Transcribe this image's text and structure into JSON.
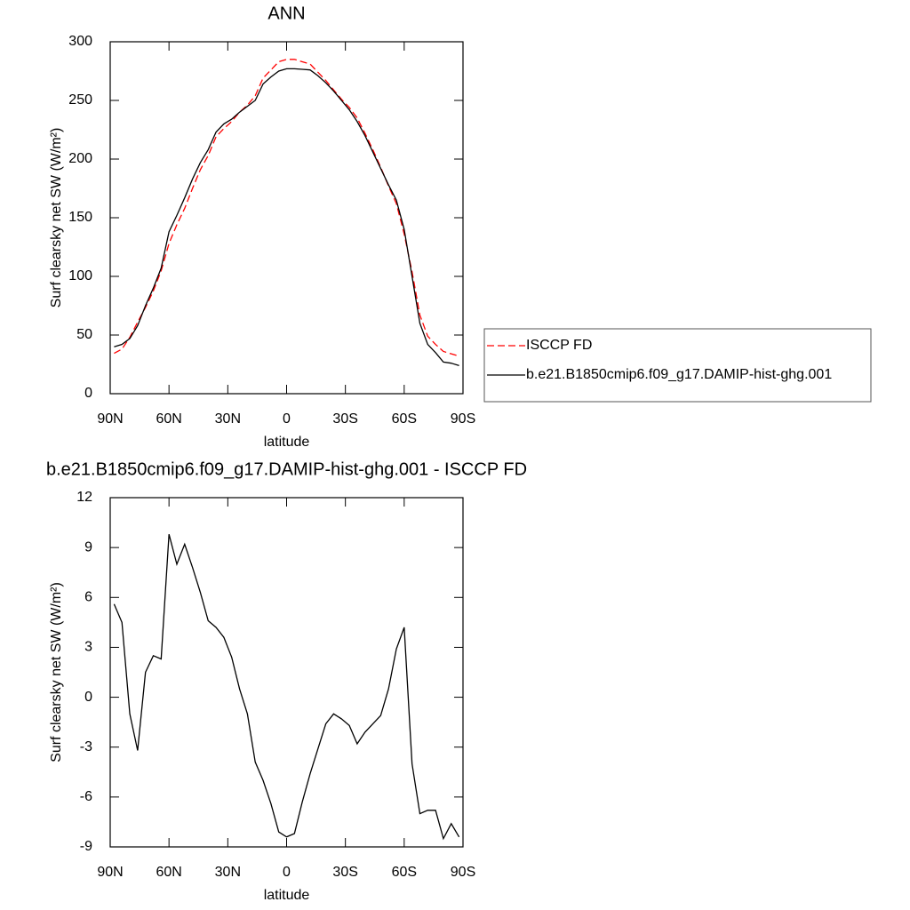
{
  "chart_data": [
    {
      "type": "line",
      "title": "ANN",
      "xlabel": "latitude",
      "ylabel": "Surf clearsky net SW (W/m²)",
      "x": [
        88,
        84,
        80,
        76,
        72,
        68,
        64,
        60,
        56,
        52,
        48,
        44,
        40,
        36,
        32,
        28,
        24,
        20,
        16,
        12,
        8,
        4,
        0,
        -4,
        -8,
        -12,
        -16,
        -20,
        -24,
        -28,
        -32,
        -36,
        -40,
        -44,
        -48,
        -52,
        -56,
        -60,
        -64,
        -68,
        -72,
        -76,
        -80,
        -84,
        -88
      ],
      "xlim": [
        90,
        -90
      ],
      "xticks": [
        {
          "value": 90,
          "label": "90N"
        },
        {
          "value": 60,
          "label": "60N"
        },
        {
          "value": 30,
          "label": "30N"
        },
        0,
        {
          "value": -30,
          "label": "30S"
        },
        {
          "value": -60,
          "label": "60S"
        },
        {
          "value": -90,
          "label": "90S"
        }
      ],
      "ylim": [
        0,
        300
      ],
      "yticks": [
        0,
        50,
        100,
        150,
        200,
        250,
        300
      ],
      "legend": "right",
      "series": [
        {
          "name": "ISCCP FD",
          "color": "#ff0000",
          "style": "dashed",
          "values": [
            34.4,
            38,
            48,
            61,
            73.5,
            87.5,
            104.7,
            128,
            144,
            158,
            175,
            191,
            203,
            219,
            226,
            232,
            240,
            246,
            254,
            269,
            276,
            283,
            285,
            285,
            283,
            281,
            274,
            267,
            259,
            251,
            244,
            235,
            222,
            208,
            193,
            177,
            162,
            136,
            104,
            67,
            49,
            42,
            36,
            34,
            32
          ]
        },
        {
          "name": "b.e21.B1850cmip6.f09_g17.DAMIP-hist-ghg.001",
          "color": "#000000",
          "style": "solid",
          "values": [
            40,
            42,
            47,
            58,
            75,
            90,
            107,
            138,
            152,
            167,
            183,
            197,
            208,
            223,
            230,
            234,
            240,
            245,
            250,
            264,
            270,
            275,
            277,
            277,
            276.5,
            276,
            271,
            265,
            258,
            250,
            242,
            232,
            220,
            206,
            192,
            178,
            165,
            140,
            100,
            60,
            42,
            35,
            27,
            26,
            24
          ]
        }
      ]
    },
    {
      "type": "line",
      "title": "b.e21.B1850cmip6.f09_g17.DAMIP-hist-ghg.001 - ISCCP FD",
      "xlabel": "latitude",
      "ylabel": "Surf clearsky net SW (W/m²)",
      "x": [
        88,
        84,
        80,
        76,
        72,
        68,
        64,
        60,
        56,
        52,
        48,
        44,
        40,
        36,
        32,
        28,
        24,
        20,
        16,
        12,
        8,
        4,
        0,
        -4,
        -8,
        -12,
        -16,
        -20,
        -24,
        -28,
        -32,
        -36,
        -40,
        -44,
        -48,
        -52,
        -56,
        -60,
        -64,
        -68,
        -72,
        -76,
        -80,
        -84,
        -88
      ],
      "xlim": [
        90,
        -90
      ],
      "xticks": [
        {
          "value": 90,
          "label": "90N"
        },
        {
          "value": 60,
          "label": "60N"
        },
        {
          "value": 30,
          "label": "30N"
        },
        0,
        {
          "value": -30,
          "label": "30S"
        },
        {
          "value": -60,
          "label": "60S"
        },
        {
          "value": -90,
          "label": "90S"
        }
      ],
      "ylim": [
        -9,
        12
      ],
      "yticks": [
        -9,
        -6,
        -3,
        0,
        3,
        6,
        9,
        12
      ],
      "color": "#000000",
      "values": [
        5.6,
        4.5,
        -1,
        -3.2,
        1.5,
        2.5,
        2.3,
        9.8,
        8,
        9.2,
        7.8,
        6.3,
        4.6,
        4.2,
        3.6,
        2.4,
        0.5,
        -1,
        -3.9,
        -5,
        -6.4,
        -8.1,
        -8.4,
        -8.2,
        -6.3,
        -4.6,
        -3.1,
        -1.6,
        -1,
        -1.3,
        -1.7,
        -2.8,
        -2.1,
        -1.6,
        -1.1,
        0.5,
        2.9,
        4.2,
        -4,
        -7,
        -6.8,
        -6.8,
        -8.5,
        -7.6,
        -8.4
      ]
    }
  ]
}
